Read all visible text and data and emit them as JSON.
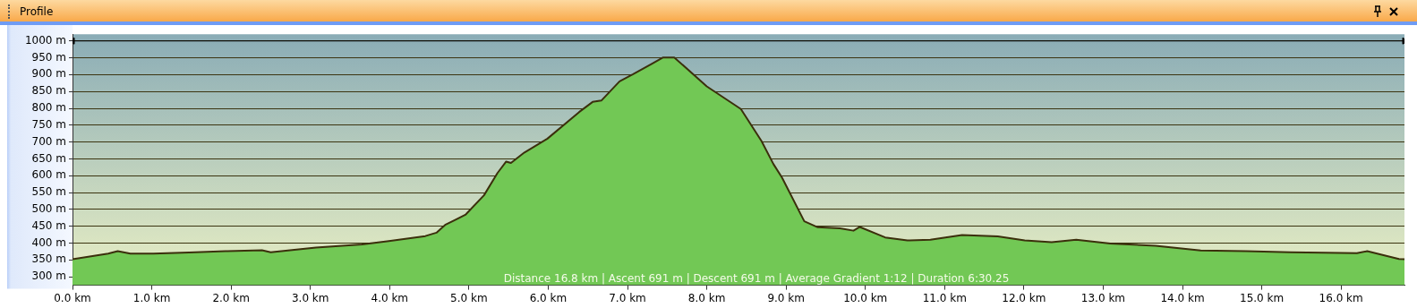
{
  "chart_data": {
    "type": "area",
    "title": "Profile",
    "x": [
      0,
      0.45,
      0.57,
      0.73,
      1.02,
      1.47,
      1.93,
      2.39,
      2.5,
      3.07,
      3.65,
      3.99,
      4.45,
      4.59,
      4.7,
      4.96,
      5.19,
      5.36,
      5.47,
      5.53,
      5.7,
      5.99,
      6.39,
      6.56,
      6.67,
      6.9,
      7.07,
      7.3,
      7.45,
      7.59,
      8.0,
      8.43,
      8.69,
      8.84,
      8.95,
      9.23,
      9.4,
      9.68,
      9.85,
      9.93,
      10.25,
      10.53,
      10.82,
      11.22,
      11.67,
      12.01,
      12.35,
      12.66,
      13.09,
      13.66,
      14.23,
      14.8,
      15.36,
      16.2,
      16.33,
      16.73,
      16.8
    ],
    "series": [
      {
        "color": "#72c855",
        "values": [
          352,
          369,
          376,
          369,
          369,
          372,
          376,
          379,
          373,
          387,
          396,
          406,
          421,
          431,
          454,
          485,
          542,
          608,
          642,
          638,
          669,
          710,
          789,
          819,
          823,
          880,
          901,
          931,
          951,
          951,
          865,
          798,
          703,
          635,
          594,
          465,
          447,
          444,
          437,
          448,
          417,
          408,
          410,
          424,
          420,
          408,
          403,
          410,
          399,
          392,
          378,
          376,
          373,
          370,
          376,
          353,
          352
        ]
      },
      {
        "type": "line",
        "color": "#000000",
        "x": [
          0,
          16.8
        ],
        "values": [
          1000,
          1000
        ],
        "marker": "triangle"
      }
    ],
    "xlim": [
      0,
      16.8
    ],
    "ylim": [
      275,
      1020
    ],
    "xticks": [
      {
        "value": 0,
        "label": "0.0 km"
      },
      {
        "value": 1,
        "label": "1.0 km"
      },
      {
        "value": 2,
        "label": "2.0 km"
      },
      {
        "value": 3,
        "label": "3.0 km"
      },
      {
        "value": 4,
        "label": "4.0 km"
      },
      {
        "value": 5,
        "label": "5.0 km"
      },
      {
        "value": 6,
        "label": "6.0 km"
      },
      {
        "value": 7,
        "label": "7.0 km"
      },
      {
        "value": 8,
        "label": "8.0 km"
      },
      {
        "value": 9,
        "label": "9.0 km"
      },
      {
        "value": 10,
        "label": "10.0 km"
      },
      {
        "value": 11,
        "label": "11.0 km"
      },
      {
        "value": 12,
        "label": "12.0 km"
      },
      {
        "value": 13,
        "label": "13.0 km"
      },
      {
        "value": 14,
        "label": "14.0 km"
      },
      {
        "value": 15,
        "label": "15.0 km"
      },
      {
        "value": 16,
        "label": "16.0 km"
      }
    ],
    "yticks": [
      {
        "value": 300,
        "label": "300 m"
      },
      {
        "value": 350,
        "label": "350 m"
      },
      {
        "value": 400,
        "label": "400 m"
      },
      {
        "value": 450,
        "label": "450 m"
      },
      {
        "value": 500,
        "label": "500 m"
      },
      {
        "value": 550,
        "label": "550 m"
      },
      {
        "value": 600,
        "label": "600 m"
      },
      {
        "value": 650,
        "label": "650 m"
      },
      {
        "value": 700,
        "label": "700 m"
      },
      {
        "value": 750,
        "label": "750 m"
      },
      {
        "value": 800,
        "label": "800 m"
      },
      {
        "value": 850,
        "label": "850 m"
      },
      {
        "value": 900,
        "label": "900 m"
      },
      {
        "value": 950,
        "label": "950 m"
      },
      {
        "value": 1000,
        "label": "1000 m"
      }
    ],
    "grid": "y",
    "legend": false,
    "marker": "none",
    "line_style": "solid",
    "annotations": [
      "Distance 16.8 km | Ascent 691 m | Descent 691 m | Average Gradient 1:12 | Duration 6:30.25"
    ]
  }
}
